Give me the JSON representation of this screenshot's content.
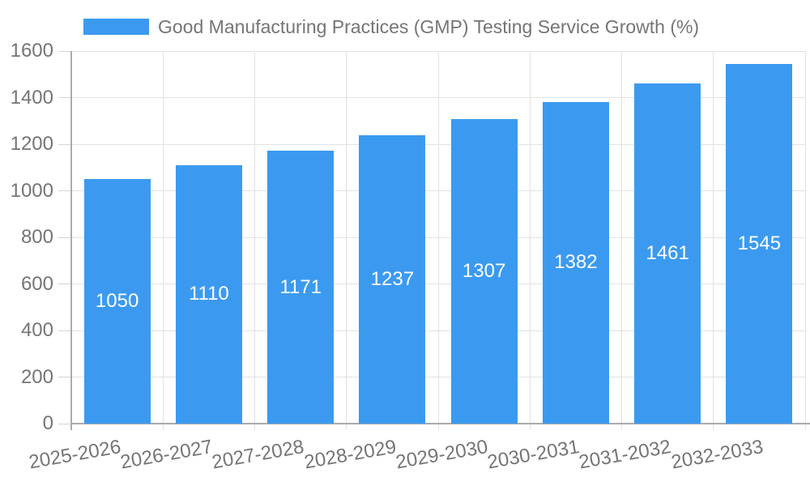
{
  "chart_data": {
    "type": "bar",
    "title": "Good Manufacturing Practices (GMP) Testing Service Growth (%)",
    "categories": [
      "2025-2026",
      "2026-2027",
      "2027-2028",
      "2028-2029",
      "2029-2030",
      "2030-2031",
      "2031-2032",
      "2032-2033"
    ],
    "values": [
      1050,
      1110,
      1171,
      1237,
      1307,
      1382,
      1461,
      1545
    ],
    "xlabel": "",
    "ylabel": "",
    "ylim": [
      0,
      1600
    ],
    "yticks": [
      0,
      200,
      400,
      600,
      800,
      1000,
      1200,
      1400,
      1600
    ],
    "grid": "on",
    "legend_position": "top-left",
    "value_labels": "centered-inside-bars",
    "colors": {
      "bar": "#3B9AF0",
      "axis_line": "#ababab",
      "gridline": "#e2e2e2",
      "tick": "#d4d4d4",
      "label_text": "#757575",
      "value_label_text": "#ffffff",
      "background": "#ffffff"
    }
  }
}
